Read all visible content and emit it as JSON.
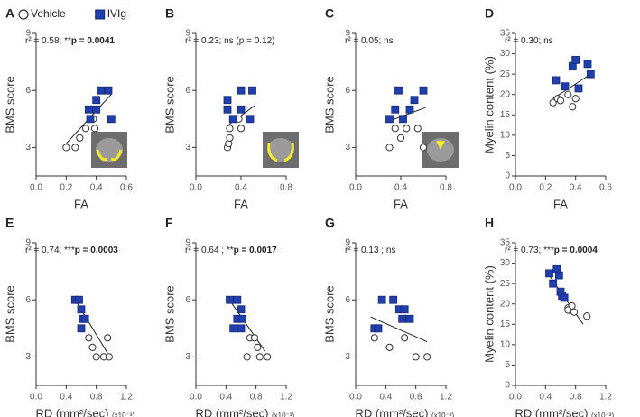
{
  "chart_data": [
    {
      "type": "scatter",
      "panel": "A",
      "xlabel": "FA",
      "ylabel": "BMS score",
      "annotation": {
        "text": "r² = 0.58; **",
        "bold": "p = 0.0041"
      },
      "xlim": [
        0,
        0.6
      ],
      "xticks": [
        {
          "value": 0,
          "label": "0.0"
        },
        0.2,
        0.4,
        0.6
      ],
      "ylim": [
        1.5,
        9
      ],
      "yticks": [
        3,
        6,
        9
      ],
      "series": [
        {
          "name": "Vehicle",
          "marker": "circle",
          "color": "#ffffff",
          "x": [
            0.2,
            0.26,
            0.29,
            0.33,
            0.39,
            0.38
          ],
          "values": [
            3,
            3,
            3.5,
            4,
            4,
            4.5
          ]
        },
        {
          "name": "IVIg",
          "marker": "square",
          "color": "#1f3fae",
          "x": [
            0.35,
            0.4,
            0.4,
            0.43,
            0.48,
            0.5,
            0.36
          ],
          "values": [
            5,
            5.5,
            5,
            6,
            6,
            4.5,
            4.5
          ]
        }
      ],
      "fit": {
        "x": [
          0.2,
          0.5
        ],
        "y": [
          3.2,
          5.8
        ]
      }
    },
    {
      "type": "scatter",
      "panel": "B",
      "xlabel": "FA",
      "ylabel": "BMS score",
      "annotation": {
        "text": "r² = 0.23; ns (p = 0.12)",
        "bold": ""
      },
      "xlim": [
        0,
        0.8
      ],
      "xticks": [
        {
          "value": 0,
          "label": "0.0"
        },
        0.4,
        0.8
      ],
      "ylim": [
        1.5,
        9
      ],
      "yticks": [
        3,
        6,
        9
      ],
      "series": [
        {
          "marker": "circle",
          "color": "#ffffff",
          "x": [
            0.28,
            0.29,
            0.3,
            0.3,
            0.4,
            0.38
          ],
          "values": [
            3,
            3.2,
            3.5,
            4,
            4,
            4.5
          ]
        },
        {
          "marker": "square",
          "color": "#1f3fae",
          "x": [
            0.28,
            0.28,
            0.4,
            0.4,
            0.5,
            0.48,
            0.33
          ],
          "values": [
            5.5,
            5,
            5,
            6,
            6,
            4.5,
            4.5
          ]
        }
      ],
      "fit": {
        "x": [
          0.27,
          0.52
        ],
        "y": [
          4.1,
          5.2
        ]
      }
    },
    {
      "type": "scatter",
      "panel": "C",
      "xlabel": "FA",
      "ylabel": "BMS score",
      "annotation": {
        "text": "r² = 0.05; ns",
        "bold": ""
      },
      "xlim": [
        0,
        0.8
      ],
      "xticks": [
        {
          "value": 0,
          "label": "0.0"
        },
        0.4,
        0.8
      ],
      "ylim": [
        1.5,
        9
      ],
      "yticks": [
        3,
        6,
        9
      ],
      "series": [
        {
          "marker": "circle",
          "color": "#ffffff",
          "x": [
            0.3,
            0.35,
            0.4,
            0.45,
            0.55,
            0.6
          ],
          "values": [
            3,
            4,
            3.5,
            4,
            4,
            3
          ]
        },
        {
          "marker": "square",
          "color": "#1f3fae",
          "x": [
            0.3,
            0.35,
            0.38,
            0.42,
            0.48,
            0.52,
            0.6
          ],
          "values": [
            4.5,
            5,
            6,
            4.5,
            5,
            5.5,
            6
          ]
        }
      ],
      "fit": {
        "x": [
          0.3,
          0.62
        ],
        "y": [
          4.4,
          5.1
        ]
      }
    },
    {
      "type": "scatter",
      "panel": "D",
      "xlabel": "FA",
      "ylabel": "Myelin content (%)",
      "annotation": {
        "text": "r² = 0.30; ns",
        "bold": ""
      },
      "xlim": [
        0,
        0.6
      ],
      "xticks": [
        {
          "value": 0,
          "label": "0.0"
        },
        0.2,
        0.4,
        0.6
      ],
      "ylim": [
        0,
        35
      ],
      "yticks": [
        0,
        5,
        10,
        15,
        20,
        25,
        30,
        35
      ],
      "series": [
        {
          "marker": "circle",
          "color": "#ffffff",
          "x": [
            0.25,
            0.28,
            0.3,
            0.35,
            0.38,
            0.4
          ],
          "values": [
            18,
            19,
            18.5,
            20,
            17,
            19
          ]
        },
        {
          "marker": "square",
          "color": "#1f3fae",
          "x": [
            0.27,
            0.33,
            0.38,
            0.4,
            0.42,
            0.48,
            0.5
          ],
          "values": [
            23.5,
            22,
            27,
            28.5,
            21.5,
            27.5,
            25
          ]
        }
      ],
      "fit": {
        "x": [
          0.25,
          0.5
        ],
        "y": [
          19,
          25
        ]
      }
    },
    {
      "type": "scatter",
      "panel": "E",
      "xlabel": "RD (mm²/sec)",
      "xlabel_note": "(x10⁻³)",
      "ylabel": "BMS score",
      "annotation": {
        "text": "r² = 0.74; ***",
        "bold": "p = 0.0003"
      },
      "xlim": [
        0,
        1.2
      ],
      "xticks": [
        {
          "value": 0,
          "label": "0.0"
        },
        0.4,
        0.8,
        1.2
      ],
      "ylim": [
        1.5,
        9
      ],
      "yticks": [
        3,
        6,
        9
      ],
      "series": [
        {
          "marker": "circle",
          "color": "#ffffff",
          "x": [
            0.7,
            0.75,
            0.8,
            0.9,
            0.95,
            0.97
          ],
          "values": [
            4,
            3.5,
            3,
            3,
            4,
            3
          ]
        },
        {
          "marker": "square",
          "color": "#1f3fae",
          "x": [
            0.52,
            0.57,
            0.6,
            0.62,
            0.6,
            0.65
          ],
          "values": [
            6,
            6,
            5.5,
            5,
            4.5,
            5
          ]
        }
      ],
      "fit": {
        "x": [
          0.55,
          0.95
        ],
        "y": [
          5.8,
          3.2
        ]
      }
    },
    {
      "type": "scatter",
      "panel": "F",
      "xlabel": "RD (mm²/sec)",
      "xlabel_note": "(x10⁻³)",
      "ylabel": "BMS score",
      "annotation": {
        "text": "r² = 0.64 ; **",
        "bold": "p = 0.0017"
      },
      "xlim": [
        0,
        1.2
      ],
      "xticks": [
        {
          "value": 0,
          "label": "0.0"
        },
        0.4,
        0.8,
        1.2
      ],
      "ylim": [
        1.5,
        9
      ],
      "yticks": [
        3,
        6,
        9
      ],
      "series": [
        {
          "marker": "circle",
          "color": "#ffffff",
          "x": [
            0.68,
            0.72,
            0.78,
            0.82,
            0.85,
            0.95
          ],
          "values": [
            3,
            4,
            4,
            3.5,
            3,
            3
          ]
        },
        {
          "marker": "square",
          "color": "#1f3fae",
          "x": [
            0.45,
            0.55,
            0.6,
            0.55,
            0.5,
            0.6,
            0.62
          ],
          "values": [
            6,
            6,
            5.5,
            5,
            4.5,
            4.5,
            5
          ]
        }
      ],
      "fit": {
        "x": [
          0.48,
          0.92
        ],
        "y": [
          5.8,
          3.3
        ]
      }
    },
    {
      "type": "scatter",
      "panel": "G",
      "xlabel": "RD (mm²/sec)",
      "xlabel_note": "(x10⁻³)",
      "ylabel": "BMS score",
      "annotation": {
        "text": "r² = 0.13 ; ns",
        "bold": ""
      },
      "xlim": [
        0,
        1.2
      ],
      "xticks": [
        {
          "value": 0,
          "label": "0.0"
        },
        0.4,
        0.8,
        1.2
      ],
      "ylim": [
        1.5,
        9
      ],
      "yticks": [
        3,
        6,
        9
      ],
      "series": [
        {
          "marker": "circle",
          "color": "#ffffff",
          "x": [
            0.25,
            0.45,
            0.65,
            0.8,
            0.95
          ],
          "values": [
            4,
            3.5,
            4,
            3,
            3
          ]
        },
        {
          "marker": "square",
          "color": "#1f3fae",
          "x": [
            0.25,
            0.3,
            0.35,
            0.5,
            0.58,
            0.62,
            0.72,
            0.65
          ],
          "values": [
            4.5,
            4.5,
            6,
            6,
            5.5,
            5,
            5,
            5.5
          ]
        }
      ],
      "fit": {
        "x": [
          0.2,
          0.95
        ],
        "y": [
          5.1,
          3.8
        ]
      }
    },
    {
      "type": "scatter",
      "panel": "H",
      "xlabel": "RD (mm²/sec)",
      "xlabel_note": "(x10⁻³)",
      "ylabel": "Myelin content (%)",
      "annotation": {
        "text": "r² = 0.73; ***",
        "bold": "p = 0.0004"
      },
      "xlim": [
        0,
        1.2
      ],
      "xticks": [
        {
          "value": 0,
          "label": "0.0"
        },
        0.4,
        0.8,
        1.2
      ],
      "ylim": [
        0,
        35
      ],
      "yticks": [
        0,
        5,
        10,
        15,
        20,
        25,
        30,
        35
      ],
      "series": [
        {
          "marker": "circle",
          "color": "#ffffff",
          "x": [
            0.7,
            0.72,
            0.75,
            0.78,
            0.95,
            0.7
          ],
          "values": [
            19,
            18.5,
            19.5,
            18,
            17,
            18.5
          ]
        },
        {
          "marker": "square",
          "color": "#1f3fae",
          "x": [
            0.45,
            0.5,
            0.55,
            0.58,
            0.6,
            0.62,
            0.65
          ],
          "values": [
            27.5,
            25,
            28.5,
            27,
            23,
            22,
            21.5
          ]
        }
      ],
      "fit": {
        "x": [
          0.45,
          0.9
        ],
        "y": [
          27,
          15
        ]
      }
    }
  ]
}
